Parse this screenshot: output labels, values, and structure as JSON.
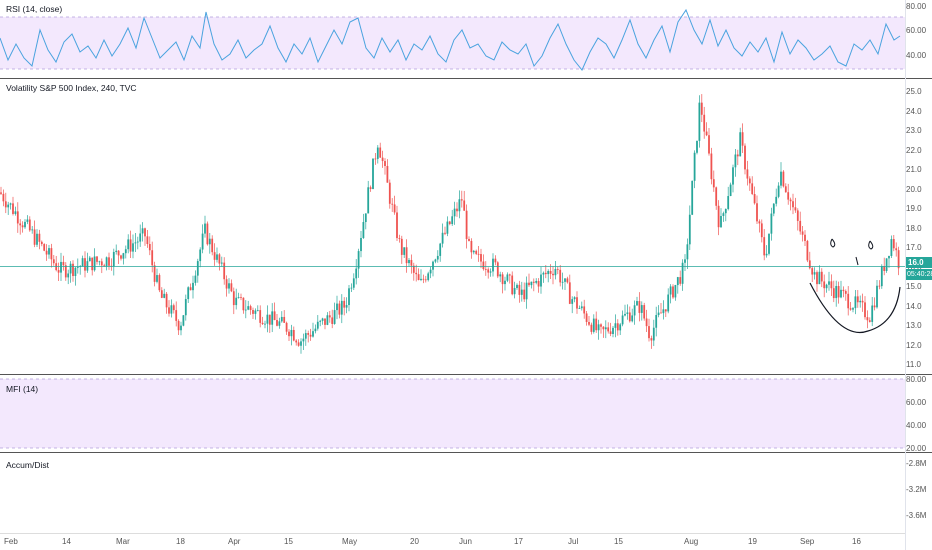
{
  "panes": {
    "rsi": {
      "title": "RSI (14, close)",
      "scale": [
        "80.00",
        "60.00",
        "40.00"
      ],
      "band": [
        30,
        70
      ]
    },
    "price": {
      "title": "Volatility S&P 500 Index, 240, TVC",
      "scale": [
        "25.0",
        "24.0",
        "23.0",
        "22.0",
        "21.0",
        "20.0",
        "19.0",
        "18.0",
        "17.0",
        "16.0",
        "15.0",
        "14.0",
        "13.0",
        "12.0",
        "11.0"
      ],
      "current_price": "16.0",
      "countdown": "05:40:28"
    },
    "mfi": {
      "title": "MFI (14)",
      "scale": [
        "80.00",
        "60.00",
        "40.00",
        "20.00"
      ]
    },
    "accum": {
      "title": "Accum/Dist",
      "scale": [
        "-2.8M",
        "-3.2M",
        "-3.6M"
      ]
    }
  },
  "time_axis": [
    "Feb",
    "14",
    "Mar",
    "18",
    "Apr",
    "15",
    "May",
    "20",
    "Jun",
    "17",
    "Jul",
    "15",
    "Aug",
    "19",
    "Sep",
    "16"
  ],
  "colors": {
    "up": "#26a69a",
    "down": "#ef5350",
    "rsi_line": "#2196f3",
    "band_fill": "#f3e8fd",
    "pane_divider": "#555555"
  },
  "chart_data": {
    "type": "candlestick",
    "title": "Volatility S&P 500 Index, 240, TVC",
    "x_ticks": [
      "Feb",
      "14",
      "Mar",
      "18",
      "Apr",
      "15",
      "May",
      "20",
      "Jun",
      "17",
      "Jul",
      "15",
      "Aug",
      "19",
      "Sep",
      "16"
    ],
    "ylim": [
      11.0,
      25.0
    ],
    "current_value": 16.0,
    "close_path": [
      {
        "x": "Feb",
        "y": 19.8
      },
      {
        "x": "14",
        "y": 15.8
      },
      {
        "x": "Mar",
        "y": 16.4
      },
      {
        "x": "Mar",
        "y": 17.6
      },
      {
        "x": "Mar",
        "y": 14.5
      },
      {
        "x": "18",
        "y": 13.0
      },
      {
        "x": "18",
        "y": 17.8
      },
      {
        "x": "Apr",
        "y": 14.2
      },
      {
        "x": "15",
        "y": 12.8
      },
      {
        "x": "15",
        "y": 12.2
      },
      {
        "x": "May",
        "y": 14.0
      },
      {
        "x": "May",
        "y": 16.0
      },
      {
        "x": "May",
        "y": 22.5
      },
      {
        "x": "20",
        "y": 17.0
      },
      {
        "x": "20",
        "y": 15.0
      },
      {
        "x": "Jun",
        "y": 19.5
      },
      {
        "x": "Jun",
        "y": 16.5
      },
      {
        "x": "17",
        "y": 16.0
      },
      {
        "x": "17",
        "y": 14.5
      },
      {
        "x": "Jul",
        "y": 16.0
      },
      {
        "x": "Jul",
        "y": 14.5
      },
      {
        "x": "15",
        "y": 12.5
      },
      {
        "x": "15",
        "y": 14.0
      },
      {
        "x": "15",
        "y": 12.5
      },
      {
        "x": "Aug",
        "y": 16.0
      },
      {
        "x": "Aug",
        "y": 24.5
      },
      {
        "x": "Aug",
        "y": 18.0
      },
      {
        "x": "19",
        "y": 22.5
      },
      {
        "x": "19",
        "y": 16.5
      },
      {
        "x": "Sep",
        "y": 21.0
      },
      {
        "x": "Sep",
        "y": 15.5
      },
      {
        "x": "16",
        "y": 13.5
      },
      {
        "x": "16",
        "y": 17.5
      },
      {
        "x": "16",
        "y": 16.0
      }
    ],
    "rsi": {
      "ylim": [
        30,
        80
      ],
      "band": [
        30,
        70
      ]
    },
    "mfi": {
      "ylim": [
        20,
        80
      ]
    },
    "accum_dist": {
      "ylim": [
        "-2.8M",
        "-3.6M"
      ]
    }
  }
}
